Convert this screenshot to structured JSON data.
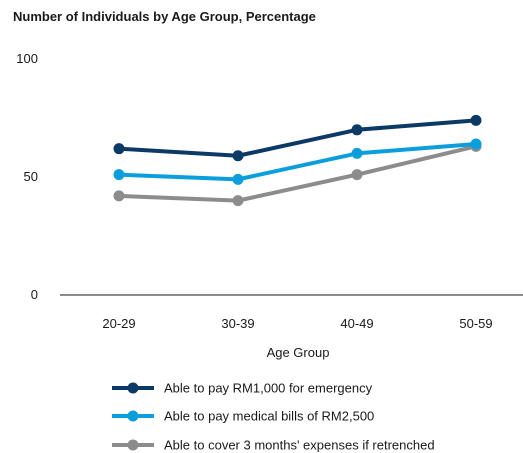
{
  "chart_data": {
    "type": "line",
    "title": "Number of Individuals by Age Group, Percentage",
    "xlabel": "Age Group",
    "ylabel": "",
    "categories": [
      "20-29",
      "30-39",
      "40-49",
      "50-59"
    ],
    "ylim": [
      0,
      100
    ],
    "yticks": [
      0,
      50,
      100
    ],
    "grid": false,
    "legend_position": "bottom",
    "series": [
      {
        "name": "Able to pay RM1,000 for emergency",
        "color": "#0b3a66",
        "values": [
          62,
          59,
          70,
          74
        ]
      },
      {
        "name": "Able to pay medical bills of RM2,500",
        "color": "#0a9fdc",
        "values": [
          51,
          49,
          60,
          64
        ]
      },
      {
        "name": "Able to cover 3 months' expenses if retrenched",
        "color": "#8c8c8c",
        "values": [
          42,
          40,
          51,
          63
        ]
      }
    ]
  }
}
